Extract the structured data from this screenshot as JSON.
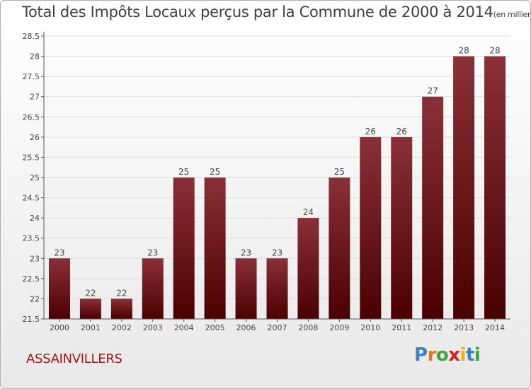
{
  "header": {
    "title": "Total des Impôts Locaux perçus par la Commune de 2000 à 2014",
    "subtitle": "(en milliers d'€)"
  },
  "footer": {
    "commune": "ASSAINVILLERS",
    "brand": "Proxiti"
  },
  "colors": {
    "bar_top": "#8a3038",
    "bar_bottom": "#4a0000",
    "axis": "#555555",
    "grid": "#dcdcdc",
    "label": "#444444"
  },
  "chart_data": {
    "type": "bar",
    "title": "Total des Impôts Locaux perçus par la Commune de 2000 à 2014",
    "subtitle": "(en milliers d'€)",
    "xlabel": "",
    "ylabel": "",
    "categories": [
      "2000",
      "2001",
      "2002",
      "2003",
      "2004",
      "2005",
      "2006",
      "2007",
      "2008",
      "2009",
      "2010",
      "2011",
      "2012",
      "2013",
      "2014"
    ],
    "values": [
      23,
      22,
      22,
      23,
      25,
      25,
      23,
      23,
      24,
      25,
      26,
      26,
      27,
      28,
      28
    ],
    "data_labels": [
      "23",
      "22",
      "22",
      "23",
      "25",
      "25",
      "23",
      "23",
      "24",
      "25",
      "26",
      "26",
      "27",
      "28",
      "28"
    ],
    "ylim": [
      21.5,
      28.5
    ],
    "yticks": [
      21.5,
      22,
      22.5,
      23,
      23.5,
      24,
      24.5,
      25,
      25.5,
      26,
      26.5,
      27,
      27.5,
      28,
      28.5
    ],
    "ytick_labels": [
      "21.5",
      "22",
      "22.5",
      "23",
      "23.5",
      "24",
      "24.5",
      "25",
      "25.5",
      "26",
      "26.5",
      "27",
      "27.5",
      "28",
      "28.5"
    ],
    "grid": true,
    "legend": "none"
  }
}
